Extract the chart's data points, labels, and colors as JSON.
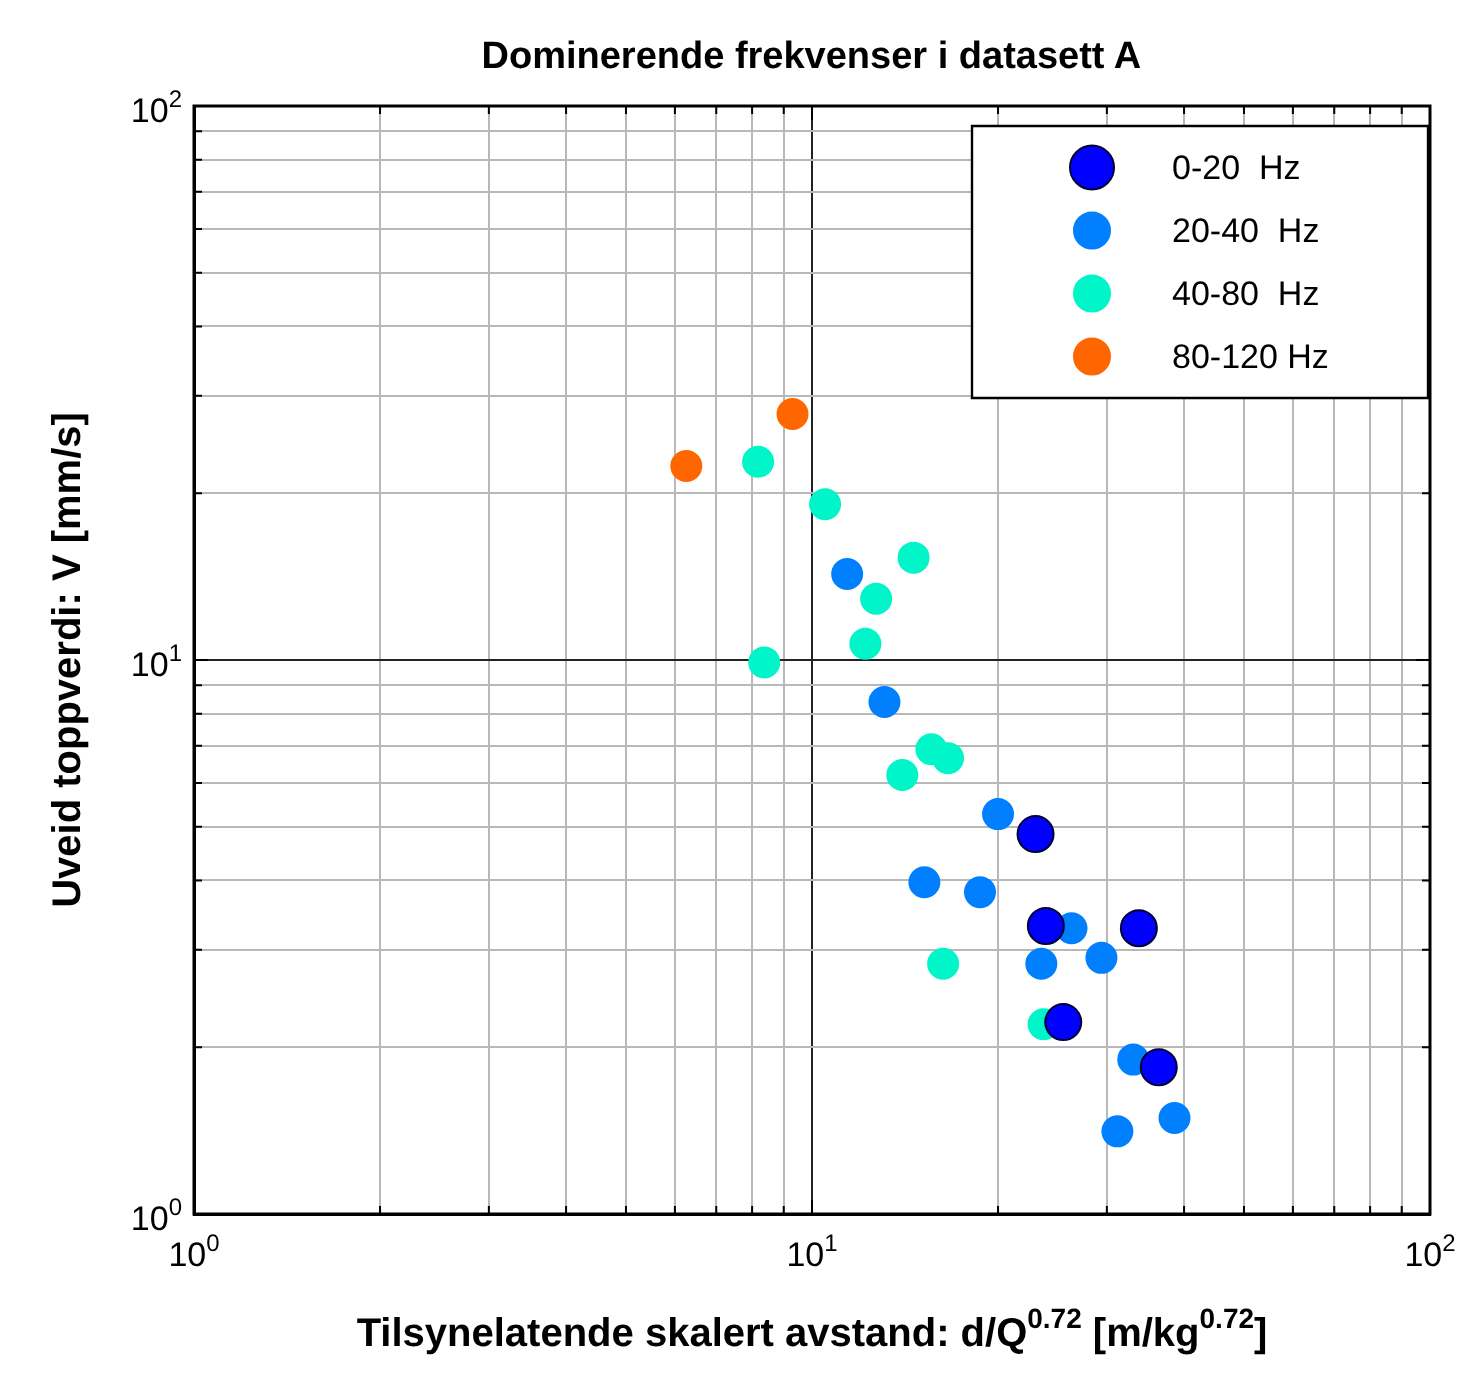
{
  "chart_data": {
    "type": "scatter",
    "title": "Dominerende frekvenser i datasett A",
    "xlabel": "Tilsynelatende skalert avstand: d/Q$^{0.72}$ [m/kg$^{0.72}$]",
    "ylabel": "Uveid toppverdi: V [mm/s]",
    "log": "xy",
    "grid": true,
    "legend": "top right",
    "marker": "circle",
    "xlim": [
      1,
      100
    ],
    "ylim": [
      1,
      100
    ],
    "xticks": [
      {
        "value": 1,
        "label": "10$^{0}$"
      },
      {
        "value": 2,
        "label": null
      },
      {
        "value": 3,
        "label": null
      },
      {
        "value": 4,
        "label": null
      },
      {
        "value": 5,
        "label": null
      },
      {
        "value": 6,
        "label": null
      },
      {
        "value": 7,
        "label": null
      },
      {
        "value": 8,
        "label": null
      },
      {
        "value": 9,
        "label": null
      },
      {
        "value": 10,
        "label": "10$^{1}$"
      },
      {
        "value": 20,
        "label": null
      },
      {
        "value": 30,
        "label": null
      },
      {
        "value": 40,
        "label": null
      },
      {
        "value": 50,
        "label": null
      },
      {
        "value": 60,
        "label": null
      },
      {
        "value": 70,
        "label": null
      },
      {
        "value": 80,
        "label": null
      },
      {
        "value": 90,
        "label": null
      },
      {
        "value": 100,
        "label": "10$^{2}$"
      }
    ],
    "yticks": [
      {
        "value": 1,
        "label": "10$^{0}$"
      },
      {
        "value": 2,
        "label": null
      },
      {
        "value": 3,
        "label": null
      },
      {
        "value": 4,
        "label": null
      },
      {
        "value": 5,
        "label": null
      },
      {
        "value": 6,
        "label": null
      },
      {
        "value": 7,
        "label": null
      },
      {
        "value": 8,
        "label": null
      },
      {
        "value": 9,
        "label": null
      },
      {
        "value": 10,
        "label": "10$^{1}$"
      },
      {
        "value": 20,
        "label": null
      },
      {
        "value": 30,
        "label": null
      },
      {
        "value": 40,
        "label": null
      },
      {
        "value": 50,
        "label": null
      },
      {
        "value": 60,
        "label": null
      },
      {
        "value": 70,
        "label": null
      },
      {
        "value": 80,
        "label": null
      },
      {
        "value": 90,
        "label": null
      },
      {
        "value": 100,
        "label": "10$^{2}$"
      }
    ],
    "series": [
      {
        "name": "0-20  Hz",
        "color": "#0000ff",
        "x": [
          23.0,
          23.9,
          33.8,
          25.5,
          36.4
        ],
        "values": [
          4.85,
          3.31,
          3.28,
          2.22,
          1.84
        ]
      },
      {
        "name": "20-40  Hz",
        "color": "#0080ff",
        "x": [
          11.4,
          13.1,
          20.0,
          15.2,
          18.7,
          26.3,
          23.5,
          29.4,
          33.1,
          38.6,
          31.2
        ],
        "values": [
          14.3,
          8.4,
          5.27,
          3.97,
          3.81,
          3.28,
          2.83,
          2.9,
          1.9,
          1.49,
          1.41
        ]
      },
      {
        "name": "40-80  Hz",
        "color": "#00f5c8",
        "x": [
          8.18,
          10.5,
          14.6,
          12.7,
          12.2,
          8.37,
          15.6,
          16.6,
          14.0,
          16.3,
          23.7
        ],
        "values": [
          22.8,
          19.1,
          15.3,
          12.9,
          10.7,
          9.9,
          6.9,
          6.65,
          6.2,
          2.83,
          2.2
        ]
      },
      {
        "name": "80-120 Hz",
        "color": "#ff6600",
        "x": [
          6.26,
          9.3
        ],
        "values": [
          22.4,
          27.8
        ]
      }
    ]
  }
}
